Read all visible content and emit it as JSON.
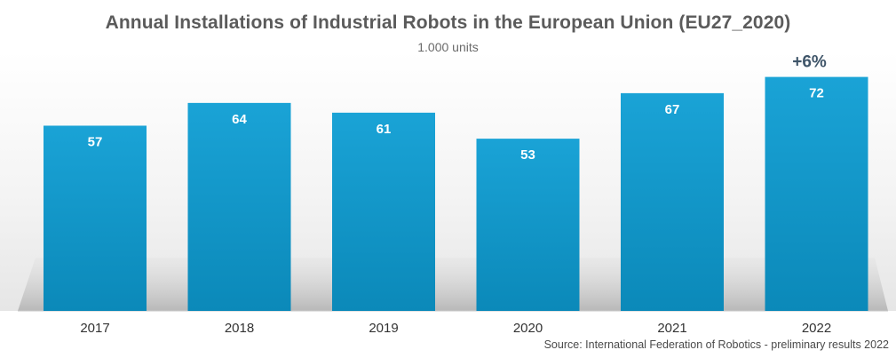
{
  "chart_data": {
    "type": "bar",
    "title": "Annual Installations of Industrial Robots in the European Union (EU27_2020)",
    "subtitle": "1,000 units",
    "categories": [
      "2017",
      "2018",
      "2019",
      "2020",
      "2021",
      "2022"
    ],
    "values": [
      57,
      64,
      61,
      53,
      67,
      72
    ],
    "value_labels": [
      "57",
      "64",
      "61",
      "53",
      "67",
      "72"
    ],
    "annotation": {
      "category": "2022",
      "text": "+6%"
    },
    "xlabel": "",
    "ylabel": "",
    "ylim": [
      0,
      80
    ],
    "grid": false,
    "legend": "none",
    "source": "Source: International Federation of Robotics - preliminary results 2022"
  },
  "colors": {
    "bar_top": "#1aa3d6",
    "bar_bottom": "#0b89b9",
    "title": "#5b5b5b",
    "annotation": "#3f5569",
    "value_label": "#ffffff"
  }
}
